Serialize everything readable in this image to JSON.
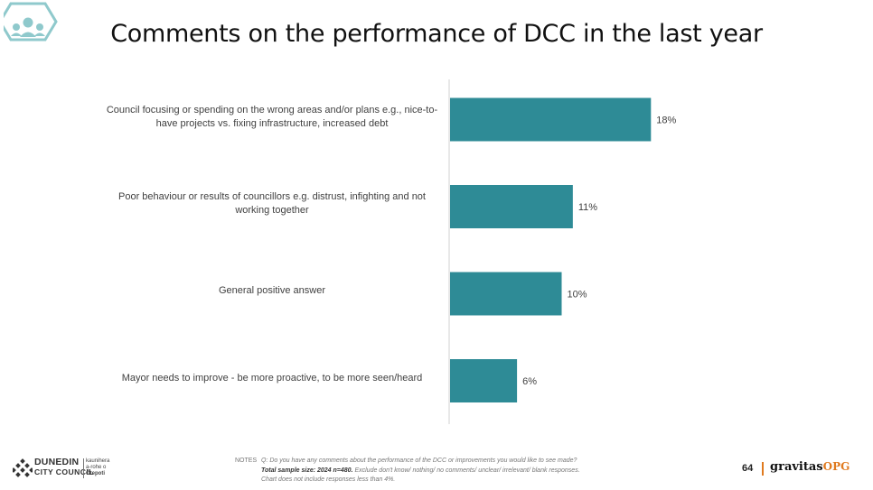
{
  "slide": {
    "title": "Comments on the performance of DCC in the last year",
    "page_number": "64"
  },
  "notes": {
    "tag": "NOTES",
    "question": "Q: Do you have any comments about the performance of the DCC or improvements you would like to see made?",
    "sample": "Total sample size: 2024 n=480.",
    "exclusions": "Exclude don't know/ nothing/ no comments/ unclear/ irrelevant/ blank responses.",
    "threshold": "Chart does not include responses less than 4%."
  },
  "logos": {
    "council_line1": "DUNEDIN",
    "council_line2": "CITY COUNCIL",
    "council_maori_1": "kaunihera",
    "council_maori_2": "a-rohe o",
    "council_maori_3": "Ōtepoti",
    "brand_main": "gravitas",
    "brand_suffix": "OPG"
  },
  "colors": {
    "bar": "#2e8b96",
    "badge": "#8fc9cc",
    "accent": "#e07a1f",
    "axis": "#d0d0d0"
  },
  "icons": {
    "badge": "people-badge-icon",
    "council": "council-diamond-icon"
  },
  "chart_data": {
    "type": "bar",
    "orientation": "horizontal",
    "categories": [
      "Council focusing or spending on the wrong areas and/or plans e.g., nice-to-have projects vs. fixing infrastructure, increased debt",
      "Poor behaviour or results of councillors e.g. distrust, infighting and not working together",
      "General positive answer",
      "Mayor needs to improve - be more proactive, to be more seen/heard"
    ],
    "values": [
      18,
      11,
      10,
      6
    ],
    "value_labels": [
      "18%",
      "11%",
      "10%",
      "6%"
    ],
    "unit": "%",
    "xlim": [
      0,
      30
    ],
    "grid": false,
    "legend": "none"
  }
}
